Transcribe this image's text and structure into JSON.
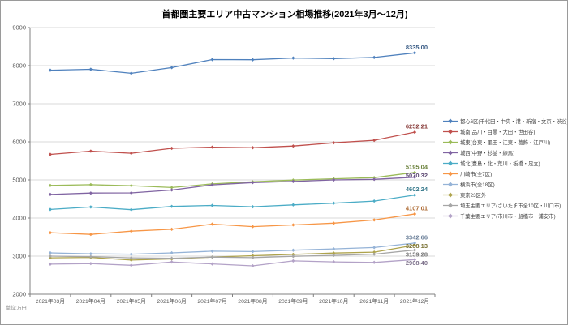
{
  "title": "首都圏主要エリア中古マンション相場推移(2021年3月～12月)",
  "unit_note": "単位:万円",
  "chart_data": {
    "type": "line",
    "title": "首都圏主要エリア中古マンション相場推移(2021年3月～12月)",
    "xlabel": "",
    "ylabel": "単位:万円",
    "ylim": [
      2000,
      9000
    ],
    "ytick_interval": 1000,
    "yticks": [
      "2000",
      "3000",
      "4000",
      "5000",
      "6000",
      "7000",
      "8000",
      "9000"
    ],
    "grid": true,
    "legend_position": "right",
    "marker": "diamond",
    "categories": [
      "2021年03月",
      "2021年04月",
      "2021年05月",
      "2021年06月",
      "2021年07月",
      "2021年08月",
      "2021年09月",
      "2021年10月",
      "2021年11月",
      "2021年12月"
    ],
    "series": [
      {
        "name": "都心6区(千代田・中央・港・新宿・文京・渋谷)",
        "color": "#4F81BD",
        "end_label": "8335.00",
        "values": [
          7880,
          7905,
          7800,
          7950,
          8160,
          8155,
          8200,
          8185,
          8215,
          8335.0
        ]
      },
      {
        "name": "城南(品川・目黒・大田・世田谷)",
        "color": "#C0504D",
        "end_label": "6252.21",
        "values": [
          5670,
          5755,
          5700,
          5830,
          5860,
          5845,
          5890,
          5975,
          6040,
          6252.21
        ]
      },
      {
        "name": "城東(台東・墨田・江東・葛飾・江戸川)",
        "color": "#9BBB59",
        "end_label": "5195.04",
        "values": [
          4855,
          4875,
          4850,
          4800,
          4895,
          4950,
          4995,
          5030,
          5060,
          5195.04
        ]
      },
      {
        "name": "城西(中野・杉並・練馬)",
        "color": "#8064A2",
        "end_label": "5070.32",
        "values": [
          4620,
          4655,
          4660,
          4735,
          4870,
          4930,
          4960,
          5000,
          5015,
          5070.32
        ]
      },
      {
        "name": "城北(豊島・北・荒川・板橋・足立)",
        "color": "#4BACC6",
        "end_label": "4602.24",
        "values": [
          4225,
          4290,
          4220,
          4305,
          4330,
          4295,
          4345,
          4390,
          4445,
          4602.24
        ]
      },
      {
        "name": "川崎市(全7区)",
        "color": "#F79646",
        "end_label": "4107.01",
        "values": [
          3615,
          3570,
          3655,
          3705,
          3840,
          3775,
          3820,
          3865,
          3950,
          4107.01
        ]
      },
      {
        "name": "横浜市(全18区)",
        "color": "#95B3D7",
        "end_label": "3342.66",
        "values": [
          3085,
          3060,
          3050,
          3085,
          3130,
          3120,
          3155,
          3190,
          3225,
          3342.66
        ]
      },
      {
        "name": "東京23区外",
        "color": "#AEA34C",
        "end_label": "3288.13",
        "values": [
          2955,
          2965,
          2895,
          2925,
          2975,
          3010,
          3045,
          3080,
          3105,
          3288.13
        ]
      },
      {
        "name": "埼玉主要エリア(さいたま市全10区・川口市)",
        "color": "#A6A6A6",
        "end_label": "3159.28",
        "values": [
          3000,
          2985,
          2955,
          2945,
          2975,
          2960,
          2995,
          3020,
          3050,
          3159.28
        ]
      },
      {
        "name": "千葉主要エリア(市川市・船橋市・浦安市)",
        "color": "#B3A2C7",
        "end_label": "2908.40",
        "values": [
          2790,
          2805,
          2760,
          2845,
          2795,
          2745,
          2875,
          2850,
          2835,
          2908.4
        ]
      }
    ]
  }
}
